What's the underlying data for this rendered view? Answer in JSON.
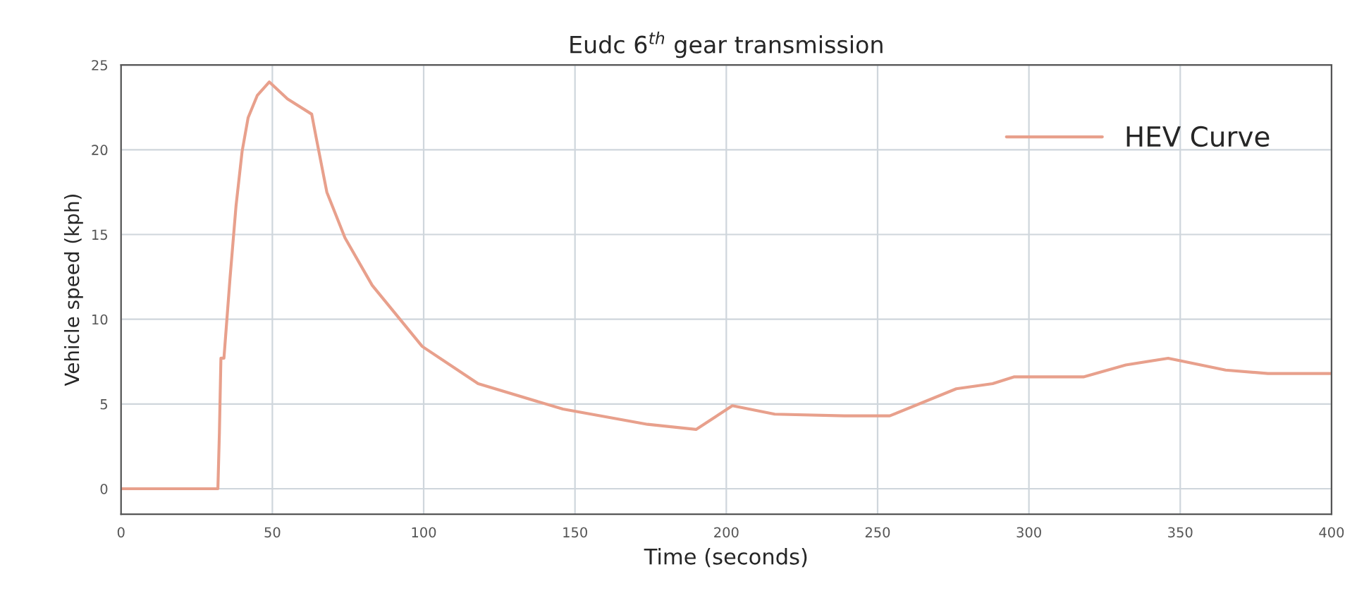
{
  "chart_data": {
    "type": "line",
    "title": "Eudc 6$^{th}$ gear transmission",
    "xlabel": "Time (seconds)",
    "ylabel": "Vehicle speed (kph)",
    "series": [
      {
        "name": "HEV Curve",
        "color": "#e8a08c",
        "x": [
          0,
          32,
          32.5,
          33,
          34,
          36,
          38,
          40,
          42,
          45,
          49,
          55,
          63,
          64.5,
          68,
          74,
          83,
          99.5,
          118,
          146,
          174,
          190,
          202,
          216,
          239,
          254,
          276,
          288,
          295,
          318,
          332,
          346,
          365,
          379,
          400
        ],
        "values": [
          0,
          0,
          3.3,
          7.7,
          7.7,
          12.4,
          16.7,
          19.9,
          21.9,
          23.2,
          24.0,
          23.0,
          22.1,
          20.7,
          17.5,
          14.8,
          12.0,
          8.4,
          6.2,
          4.7,
          3.8,
          3.5,
          4.9,
          4.4,
          4.3,
          4.3,
          5.9,
          6.2,
          6.6,
          6.6,
          7.3,
          7.7,
          7.0,
          6.8,
          6.8
        ]
      }
    ],
    "xlim": [
      0,
      400
    ],
    "xticks": [
      0,
      50,
      100,
      150,
      200,
      250,
      300,
      350,
      400
    ],
    "ylim": [
      -1.5,
      25
    ],
    "yticks": [
      0,
      5,
      10,
      15,
      20,
      25
    ],
    "grid": true,
    "legend": "top right"
  }
}
